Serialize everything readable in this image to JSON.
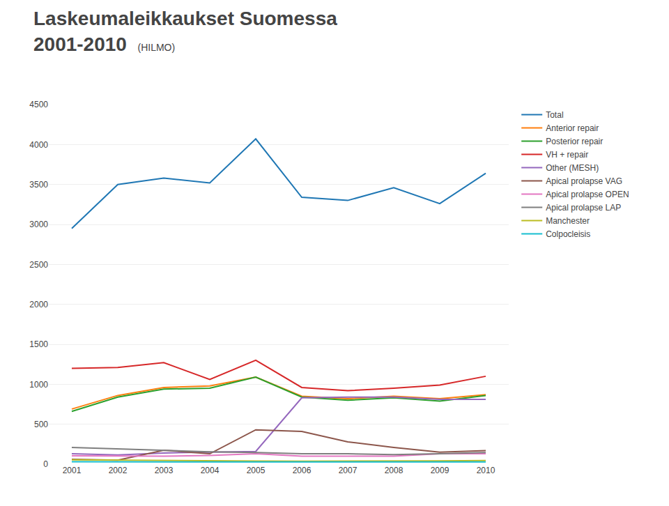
{
  "chart_data": {
    "type": "line",
    "title": "Laskeumaleikkaukset Suomessa\n2001-2010",
    "subtitle": "(HILMO)",
    "x": [
      2001,
      2002,
      2003,
      2004,
      2005,
      2006,
      2007,
      2008,
      2009,
      2010
    ],
    "series": [
      {
        "name": "Total",
        "values": [
          2950,
          3500,
          3580,
          3520,
          4070,
          3340,
          3300,
          3460,
          3260,
          3640
        ]
      },
      {
        "name": "Anterior repair",
        "values": [
          690,
          860,
          960,
          980,
          1090,
          850,
          820,
          850,
          820,
          870
        ]
      },
      {
        "name": "Posterior repair",
        "values": [
          660,
          840,
          940,
          950,
          1090,
          840,
          800,
          830,
          790,
          860
        ]
      },
      {
        "name": "VH + repair",
        "values": [
          1200,
          1210,
          1270,
          1060,
          1300,
          960,
          920,
          950,
          990,
          1100
        ]
      },
      {
        "name": "Other (MESH)",
        "values": [
          130,
          115,
          140,
          150,
          160,
          830,
          840,
          840,
          810,
          810
        ]
      },
      {
        "name": "Apical prolapse VAG",
        "values": [
          60,
          50,
          175,
          130,
          430,
          410,
          280,
          210,
          150,
          170
        ]
      },
      {
        "name": "Apical prolapse OPEN",
        "values": [
          105,
          100,
          100,
          110,
          130,
          100,
          100,
          100,
          130,
          130
        ]
      },
      {
        "name": "Apical prolapse LAP",
        "values": [
          210,
          190,
          175,
          155,
          145,
          130,
          130,
          120,
          130,
          145
        ]
      },
      {
        "name": "Manchester",
        "values": [
          55,
          50,
          45,
          42,
          40,
          38,
          38,
          40,
          42,
          45
        ]
      },
      {
        "name": "Colpocleisis",
        "values": [
          30,
          28,
          28,
          28,
          28,
          28,
          28,
          28,
          28,
          28
        ]
      }
    ],
    "xlim": [
      2000.5,
      2010.5
    ],
    "xticks": [
      2001,
      2002,
      2003,
      2004,
      2005,
      2006,
      2007,
      2008,
      2009,
      2010
    ],
    "ylim": [
      0,
      4500
    ],
    "yticks": [
      0,
      500,
      1000,
      1500,
      2000,
      2500,
      3000,
      3500,
      4000,
      4500
    ],
    "grid": true,
    "legend": "right"
  }
}
